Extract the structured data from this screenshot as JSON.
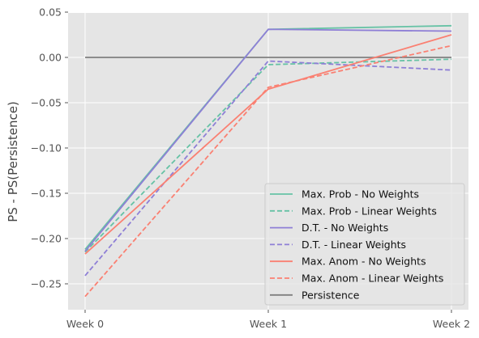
{
  "chart_data": {
    "type": "line",
    "categories": [
      "Week 0",
      "Week 1",
      "Week 2"
    ],
    "ylabel": "PS - PS(Persistence)",
    "ylim": [
      -0.28,
      0.05
    ],
    "yticks": [
      0.05,
      0.0,
      -0.05,
      -0.1,
      -0.15,
      -0.2,
      -0.25
    ],
    "ytick_labels": [
      "0.05",
      "0.00",
      "−0.05",
      "−0.10",
      "−0.15",
      "−0.20",
      "−0.25"
    ],
    "grid": true,
    "legend_position": "lower-right",
    "series": [
      {
        "name": "Max. Prob - No Weights",
        "color": "#66c2a5",
        "dash": "solid",
        "values": [
          -0.212,
          0.031,
          0.035
        ]
      },
      {
        "name": "Max. Prob - Linear Weights",
        "color": "#66c2a5",
        "dash": "dashed",
        "values": [
          -0.215,
          -0.008,
          -0.002
        ]
      },
      {
        "name": "D.T. - No Weights",
        "color": "#8e7fd6",
        "dash": "solid",
        "values": [
          -0.214,
          0.031,
          0.029
        ]
      },
      {
        "name": "D.T. - Linear Weights",
        "color": "#8e7fd6",
        "dash": "dashed",
        "values": [
          -0.241,
          -0.004,
          -0.014
        ]
      },
      {
        "name": "Max. Anom - No Weights",
        "color": "#fa8072",
        "dash": "solid",
        "values": [
          -0.217,
          -0.035,
          0.025
        ]
      },
      {
        "name": "Max. Anom - Linear Weights",
        "color": "#fa8072",
        "dash": "dashed",
        "values": [
          -0.264,
          -0.033,
          0.013
        ]
      },
      {
        "name": "Persistence",
        "color": "#808080",
        "dash": "solid",
        "values": [
          0.0,
          0.0,
          0.0
        ]
      }
    ]
  }
}
